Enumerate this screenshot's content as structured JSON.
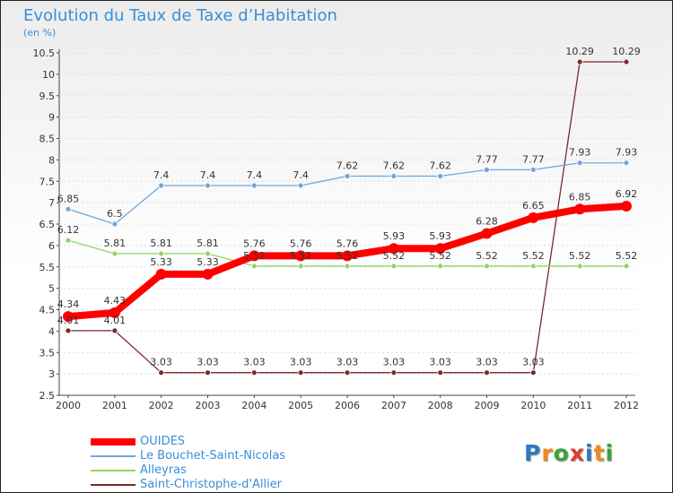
{
  "header": {
    "title": "Evolution du Taux de Taxe d’Habitation",
    "subtitle": "(en %)"
  },
  "logo": {
    "text": "Proxiti",
    "colors": [
      "#2b78c5",
      "#f08a1c",
      "#3aa33a",
      "#e03b2c",
      "#2b78c5",
      "#f08a1c",
      "#3aa33a"
    ]
  },
  "chart_data": {
    "type": "line",
    "title": "Evolution du Taux de Taxe d’Habitation",
    "subtitle": "(en %)",
    "xlabel": "",
    "ylabel": "",
    "ylim": [
      2.5,
      10.5
    ],
    "yticks": [
      "2.5",
      "3",
      "3.5",
      "4",
      "4.5",
      "5",
      "5.5",
      "6",
      "6.5",
      "7",
      "7.5",
      "8",
      "8.5",
      "9",
      "9.5",
      "10",
      "10.5"
    ],
    "x": [
      "2000",
      "2001",
      "2002",
      "2003",
      "2004",
      "2005",
      "2006",
      "2007",
      "2008",
      "2009",
      "2010",
      "2011",
      "2012"
    ],
    "grid": true,
    "legend_position": "bottom-left",
    "series": [
      {
        "name": "OUIDES",
        "color": "#ff0000",
        "values": [
          4.34,
          4.43,
          5.33,
          5.33,
          5.76,
          5.76,
          5.76,
          5.93,
          5.93,
          6.28,
          6.65,
          6.85,
          6.92
        ],
        "labels": [
          "4.34",
          "4.43",
          "5.33",
          "5.33",
          "5.76",
          "5.76",
          "5.76",
          "5.93",
          "5.93",
          "6.28",
          "6.65",
          "6.85",
          "6.92"
        ]
      },
      {
        "name": "Le Bouchet-Saint-Nicolas",
        "color": "#6fa8dc",
        "values": [
          6.85,
          6.5,
          7.4,
          7.4,
          7.4,
          7.4,
          7.62,
          7.62,
          7.62,
          7.77,
          7.77,
          7.93,
          7.93
        ],
        "labels": [
          "6.85",
          "6.5",
          "7.4",
          "7.4",
          "7.4",
          "7.4",
          "7.62",
          "7.62",
          "7.62",
          "7.77",
          "7.77",
          "7.93",
          "7.93"
        ]
      },
      {
        "name": "Alleyras",
        "color": "#93d36a",
        "values": [
          6.12,
          5.81,
          5.81,
          5.81,
          5.52,
          5.52,
          5.52,
          5.52,
          5.52,
          5.52,
          5.52,
          5.52,
          5.52
        ],
        "labels": [
          "6.12",
          "5.81",
          "5.81",
          "5.81",
          "5.52",
          "5.52",
          "5.52",
          "5.52",
          "5.52",
          "5.52",
          "5.52",
          "5.52",
          "5.52"
        ]
      },
      {
        "name": "Saint-Christophe-d'Allier",
        "color": "#7a2a2a",
        "values": [
          4.01,
          4.01,
          3.03,
          3.03,
          3.03,
          3.03,
          3.03,
          3.03,
          3.03,
          3.03,
          3.03,
          10.29,
          10.29
        ],
        "labels": [
          "4.01",
          "4.01",
          "3.03",
          "3.03",
          "3.03",
          "3.03",
          "3.03",
          "3.03",
          "3.03",
          "3.03",
          "3.03",
          "10.29",
          "10.29"
        ]
      }
    ]
  }
}
